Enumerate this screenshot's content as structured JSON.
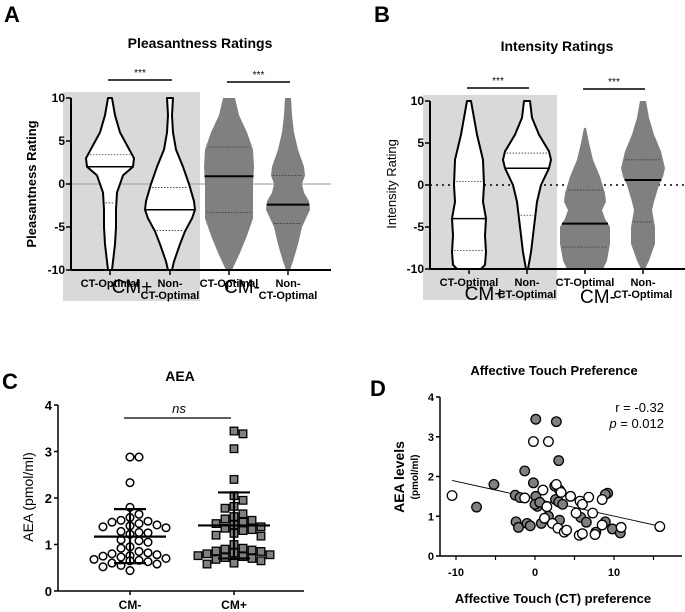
{
  "chart_data": [
    {
      "panel_label": "A",
      "type": "violin",
      "title": "Pleasantness Ratings",
      "ylabel": "Pleasantness Rating",
      "ylim": [
        -10,
        10
      ],
      "yticks": [
        "10",
        "5",
        "0",
        "-5",
        "-10"
      ],
      "reference_line": 0,
      "groups": [
        {
          "label": "CM+",
          "shaded": true
        },
        {
          "label": "CM-",
          "shaded": false
        }
      ],
      "categories": [
        {
          "label_line1": "CT-Optimal",
          "label_line2": "",
          "group": "CM+",
          "median": 2.0,
          "q1": -2.2,
          "q3": 3.4,
          "min": -10,
          "max": 10,
          "fill": "#ffffff"
        },
        {
          "label_line1": "Non-",
          "label_line2": "CT-Optimal",
          "group": "CM+",
          "median": -3.0,
          "q1": -5.4,
          "q3": -0.4,
          "min": -10,
          "max": 10,
          "fill": "#ffffff"
        },
        {
          "label_line1": "CT-Optimal",
          "label_line2": "",
          "group": "CM-",
          "median": 0.9,
          "q1": -3.3,
          "q3": 4.3,
          "min": -10,
          "max": 10,
          "fill": "#808080"
        },
        {
          "label_line1": "Non-",
          "label_line2": "CT-Optimal",
          "group": "CM-",
          "median": -2.4,
          "q1": -4.6,
          "q3": 1.0,
          "min": -10,
          "max": 10,
          "fill": "#808080"
        }
      ],
      "significance": [
        {
          "between": [
            0,
            1
          ],
          "label": "***"
        },
        {
          "between": [
            2,
            3
          ],
          "label": "***"
        }
      ]
    },
    {
      "panel_label": "B",
      "type": "violin",
      "title": "Intensity Ratings",
      "ylabel": "Intensity Rating",
      "ylim": [
        -10,
        10
      ],
      "yticks": [
        "10",
        "5",
        "0",
        "-5",
        "-10"
      ],
      "reference_line": 0,
      "groups": [
        {
          "label": "CM+",
          "shaded": true
        },
        {
          "label": "CM-",
          "shaded": false
        }
      ],
      "categories": [
        {
          "label_line1": "CT-Optimal",
          "label_line2": "",
          "group": "CM+",
          "median": -4.0,
          "q1": -7.8,
          "q3": 0.4,
          "min": -10,
          "max": 10,
          "fill": "#ffffff"
        },
        {
          "label_line1": "Non-",
          "label_line2": "CT-Optimal",
          "group": "CM+",
          "median": 2.0,
          "q1": -3.6,
          "q3": 3.8,
          "min": -10,
          "max": 10,
          "fill": "#ffffff"
        },
        {
          "label_line1": "CT-Optimal",
          "label_line2": "",
          "group": "CM-",
          "median": -4.6,
          "q1": -7.4,
          "q3": -0.6,
          "min": -10,
          "max": 6.8,
          "fill": "#808080"
        },
        {
          "label_line1": "Non-",
          "label_line2": "CT-Optimal",
          "group": "CM-",
          "median": 0.6,
          "q1": -4.4,
          "q3": 3.0,
          "min": -10,
          "max": 10,
          "fill": "#808080"
        }
      ],
      "significance": [
        {
          "between": [
            0,
            1
          ],
          "label": "***"
        },
        {
          "between": [
            2,
            3
          ],
          "label": "***"
        }
      ]
    },
    {
      "panel_label": "C",
      "type": "scatter",
      "title": "AEA",
      "ylabel": "AEA (pmol/ml)",
      "xlabel": "",
      "ylim": [
        0,
        4
      ],
      "yticks": [
        "0",
        "1",
        "2",
        "3",
        "4"
      ],
      "categories": [
        "CM-",
        "CM+"
      ],
      "series": [
        {
          "name": "CM-",
          "marker": "circle-open",
          "mean": 1.17,
          "sd_upper": 1.76,
          "sd_lower": 0.6,
          "values": [
            2.88,
            2.88,
            2.33,
            1.8,
            1.65,
            1.58,
            1.52,
            1.5,
            1.48,
            1.45,
            1.42,
            1.4,
            1.38,
            1.36,
            1.28,
            1.26,
            1.25,
            1.22,
            1.1,
            1.08,
            1.05,
            0.95,
            0.92,
            0.85,
            0.82,
            0.8,
            0.78,
            0.76,
            0.75,
            0.73,
            0.7,
            0.68,
            0.66,
            0.65,
            0.63,
            0.6,
            0.58,
            0.55,
            0.52,
            0.44
          ]
        },
        {
          "name": "CM+",
          "marker": "square-filled",
          "mean": 1.41,
          "sd_upper": 2.12,
          "sd_lower": 0.7,
          "values": [
            3.44,
            3.38,
            3.06,
            2.4,
            2.05,
            1.95,
            1.82,
            1.78,
            1.66,
            1.6,
            1.55,
            1.52,
            1.48,
            1.45,
            1.42,
            1.38,
            1.35,
            1.32,
            1.3,
            1.24,
            1.2,
            1.18,
            1.0,
            0.92,
            0.9,
            0.88,
            0.86,
            0.85,
            0.82,
            0.8,
            0.78,
            0.76,
            0.74,
            0.72,
            0.7,
            0.68,
            0.65,
            0.6,
            0.58
          ]
        }
      ],
      "significance": [
        {
          "between": [
            0,
            1
          ],
          "label": "ns"
        }
      ]
    },
    {
      "panel_label": "D",
      "type": "scatter",
      "title": "Affective Touch Preference",
      "ylabel": "AEA levels",
      "ylabel_sub": "(pmol/ml)",
      "xlabel": "Affective Touch (CT) preference",
      "xlim": [
        -12,
        18
      ],
      "ylim": [
        0,
        4
      ],
      "xticks": [
        "-10",
        "0",
        "10"
      ],
      "yticks": [
        "0",
        "1",
        "2",
        "3",
        "4"
      ],
      "annotation_r": "r = -0.32",
      "annotation_p_label": "p",
      "annotation_p_value": " = 0.012",
      "regression": {
        "x": [
          -10.5,
          15.8
        ],
        "y": [
          1.9,
          0.75
        ]
      },
      "series": [
        {
          "name": "CM+",
          "fill": "#808080",
          "points": [
            [
              0.1,
              3.44
            ],
            [
              2.7,
              3.38
            ],
            [
              3.0,
              2.4
            ],
            [
              -1.3,
              2.14
            ],
            [
              -5.2,
              1.8
            ],
            [
              -0.2,
              1.84
            ],
            [
              -7.4,
              1.23
            ],
            [
              -2.5,
              1.53
            ],
            [
              -1.9,
              1.47
            ],
            [
              0.1,
              1.5
            ],
            [
              0.3,
              1.25
            ],
            [
              0.0,
              1.3
            ],
            [
              0.6,
              1.35
            ],
            [
              2.5,
              1.76
            ],
            [
              3.1,
              1.66
            ],
            [
              2.6,
              1.42
            ],
            [
              3.0,
              1.36
            ],
            [
              3.5,
              1.3
            ],
            [
              9.2,
              1.58
            ],
            [
              8.9,
              1.55
            ],
            [
              -2.4,
              0.86
            ],
            [
              -2.1,
              0.72
            ],
            [
              -1.0,
              0.82
            ],
            [
              -0.6,
              0.76
            ],
            [
              0.8,
              0.82
            ],
            [
              1.7,
              1.0
            ],
            [
              3.1,
              0.9
            ],
            [
              5.8,
              0.97
            ],
            [
              6.5,
              0.85
            ],
            [
              7.7,
              0.6
            ],
            [
              8.9,
              0.86
            ],
            [
              9.8,
              0.68
            ],
            [
              10.8,
              0.58
            ]
          ]
        },
        {
          "name": "CM-",
          "fill": "#ffffff",
          "points": [
            [
              -10.5,
              1.52
            ],
            [
              -0.2,
              2.88
            ],
            [
              1.7,
              2.88
            ],
            [
              -1.3,
              1.46
            ],
            [
              1.0,
              1.66
            ],
            [
              1.5,
              1.24
            ],
            [
              2.7,
              1.8
            ],
            [
              3.3,
              1.6
            ],
            [
              4.5,
              1.5
            ],
            [
              5.7,
              1.38
            ],
            [
              6.8,
              1.48
            ],
            [
              8.5,
              1.42
            ],
            [
              5.2,
              1.08
            ],
            [
              7.3,
              1.08
            ],
            [
              6.0,
              1.3
            ],
            [
              1.2,
              0.95
            ],
            [
              2.2,
              0.82
            ],
            [
              2.9,
              0.7
            ],
            [
              3.7,
              0.6
            ],
            [
              4.0,
              0.65
            ],
            [
              5.6,
              0.52
            ],
            [
              6.0,
              0.56
            ],
            [
              7.6,
              0.54
            ],
            [
              8.5,
              0.78
            ],
            [
              10.9,
              0.72
            ],
            [
              15.8,
              0.74
            ]
          ]
        }
      ]
    }
  ],
  "group_labels": {
    "cm_plus": "CM+",
    "cm_minus": "CM-"
  }
}
